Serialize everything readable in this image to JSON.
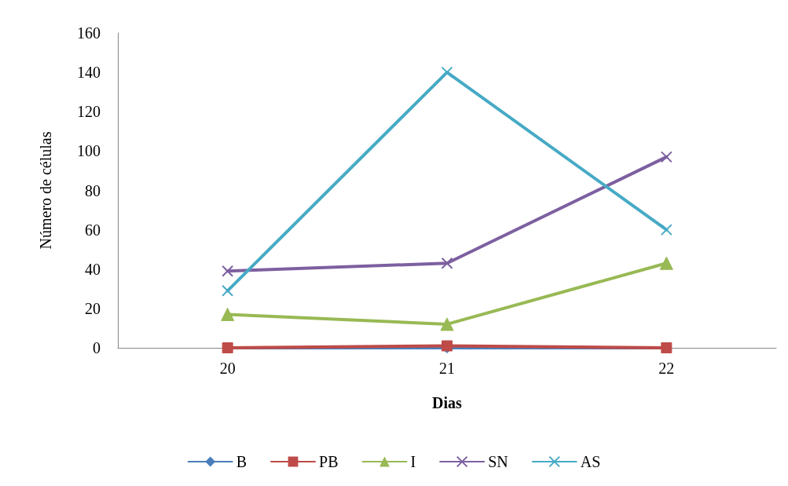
{
  "chart_data": {
    "type": "line",
    "xlabel": "Dias",
    "ylabel": "Número de células",
    "categories": [
      "20",
      "21",
      "22"
    ],
    "ylim": [
      0,
      160
    ],
    "yticks": [
      0,
      20,
      40,
      60,
      80,
      100,
      120,
      140,
      160
    ],
    "grid": false,
    "legend": "bottom",
    "line_style": "solid",
    "series": [
      {
        "name": "B",
        "color": "#4a7ebb",
        "marker": "diamond",
        "values": [
          0,
          0,
          0
        ]
      },
      {
        "name": "PB",
        "color": "#be4b48",
        "marker": "square",
        "values": [
          0,
          1,
          0
        ]
      },
      {
        "name": "I",
        "color": "#98b954",
        "marker": "triangle",
        "values": [
          17,
          12,
          43
        ]
      },
      {
        "name": "SN",
        "color": "#7d60a0",
        "marker": "cross",
        "values": [
          39,
          43,
          97
        ]
      },
      {
        "name": "AS",
        "color": "#46aac5",
        "marker": "cross",
        "values": [
          29,
          140,
          60
        ]
      }
    ]
  }
}
